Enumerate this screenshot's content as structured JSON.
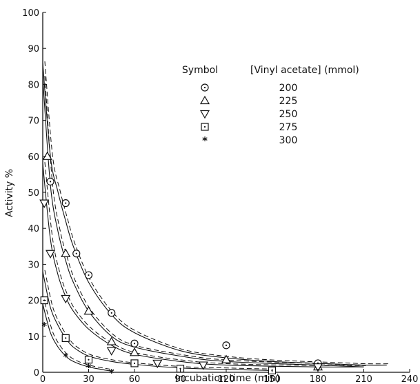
{
  "chart_data": {
    "type": "scatter",
    "xlabel": "Incubation time (min)",
    "ylabel": "Activity %",
    "xlim": [
      0,
      240
    ],
    "ylim": [
      0,
      100
    ],
    "xticks": [
      0,
      30,
      60,
      90,
      120,
      150,
      180,
      210,
      240
    ],
    "yticks": [
      0,
      10,
      20,
      30,
      40,
      50,
      60,
      70,
      80,
      90,
      100
    ],
    "grid": false,
    "legend": {
      "position": "top-right",
      "symbol_header": "Symbol",
      "value_header": "[Vinyl acetate] (mmol)"
    },
    "series": [
      {
        "name": "200",
        "marker": "circle-dot",
        "x": [
          5,
          15,
          22,
          30,
          45,
          60,
          120,
          180
        ],
        "y": [
          53,
          47,
          33,
          27,
          16.5,
          8,
          7.5,
          2.5
        ],
        "fit": [
          [
            0,
            86
          ],
          [
            5,
            60
          ],
          [
            10,
            50
          ],
          [
            15,
            42
          ],
          [
            20,
            35
          ],
          [
            30,
            25
          ],
          [
            45,
            16
          ],
          [
            60,
            11
          ],
          [
            90,
            6
          ],
          [
            120,
            4
          ],
          [
            150,
            3
          ],
          [
            180,
            2.5
          ],
          [
            210,
            2
          ],
          [
            225,
            2
          ]
        ]
      },
      {
        "name": "225",
        "marker": "triangle-up",
        "x": [
          3,
          15,
          30,
          45,
          60,
          120,
          180
        ],
        "y": [
          60,
          33,
          17,
          8.5,
          5.5,
          3.5,
          1.5
        ],
        "fit": [
          [
            0,
            82
          ],
          [
            5,
            52
          ],
          [
            10,
            39
          ],
          [
            15,
            31
          ],
          [
            20,
            25
          ],
          [
            30,
            17
          ],
          [
            45,
            10
          ],
          [
            60,
            7
          ],
          [
            90,
            4.5
          ],
          [
            120,
            3
          ],
          [
            180,
            2
          ],
          [
            210,
            1.5
          ]
        ]
      },
      {
        "name": "250",
        "marker": "triangle-down",
        "x": [
          1,
          5,
          15,
          45,
          75,
          105,
          180
        ],
        "y": [
          47,
          33,
          20.5,
          6,
          2.5,
          2,
          1.5
        ],
        "fit": [
          [
            0,
            58
          ],
          [
            5,
            37
          ],
          [
            10,
            27
          ],
          [
            15,
            21
          ],
          [
            20,
            17
          ],
          [
            30,
            12
          ],
          [
            45,
            7.5
          ],
          [
            60,
            5
          ],
          [
            90,
            3
          ],
          [
            120,
            2
          ],
          [
            180,
            1.5
          ],
          [
            210,
            1.5
          ]
        ]
      },
      {
        "name": "275",
        "marker": "square-dot",
        "x": [
          1,
          15,
          30,
          60,
          90,
          150
        ],
        "y": [
          20,
          9.5,
          3.5,
          2.5,
          1,
          0.5
        ],
        "fit": [
          [
            0,
            28
          ],
          [
            5,
            18
          ],
          [
            10,
            13
          ],
          [
            15,
            9.5
          ],
          [
            20,
            7
          ],
          [
            30,
            4.5
          ],
          [
            45,
            3
          ],
          [
            60,
            2.2
          ],
          [
            90,
            1.2
          ],
          [
            120,
            0.8
          ],
          [
            150,
            0.5
          ]
        ]
      },
      {
        "name": "300",
        "marker": "star",
        "x": [
          1,
          15,
          30,
          45
        ],
        "y": [
          13,
          4.5,
          1.5,
          0
        ],
        "fit": [
          [
            0,
            19
          ],
          [
            5,
            11
          ],
          [
            10,
            7
          ],
          [
            15,
            4.5
          ],
          [
            20,
            3
          ],
          [
            30,
            1.5
          ],
          [
            45,
            0.3
          ]
        ]
      }
    ]
  }
}
